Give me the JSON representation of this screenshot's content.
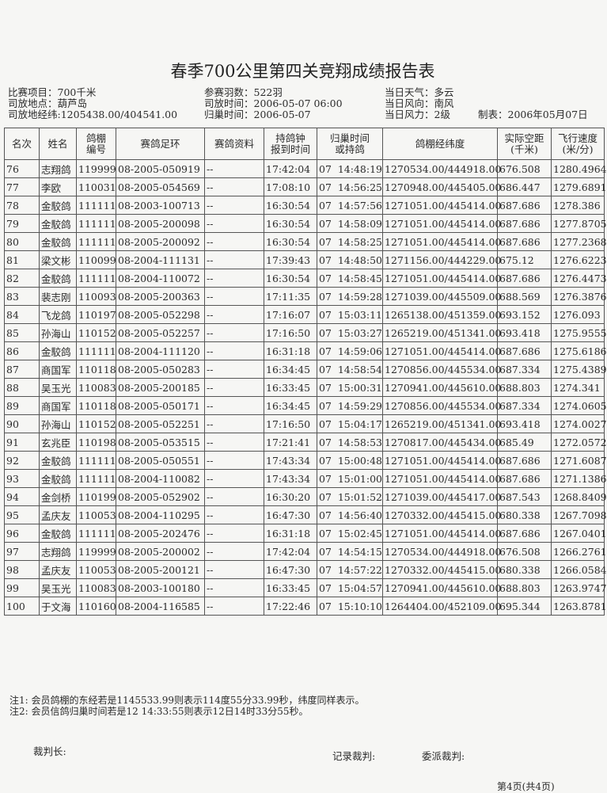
{
  "title": "春季700公里第四关竞翔成绩报告表",
  "info": {
    "left": [
      "比赛项目：700千米",
      "司放地点：葫芦岛",
      "司放地经纬:1205438.00/404541.00"
    ],
    "middle": [
      "参赛羽数：522羽",
      "司放时间：2006-05-07 06:00",
      "归巢时间：2006-05-07"
    ],
    "right": [
      "当日天气：多云",
      "当日风向：南风",
      "当日风力：2级"
    ],
    "made": "制表：2006年05月07日"
  },
  "table": {
    "headers": [
      "名次",
      "姓名",
      "鸽棚\n编号",
      "赛鸽足环",
      "赛鸽资料",
      "持鸽钟\n报到时间",
      "归巢时间\n或持鸽",
      "鸽棚经纬度",
      "实际空距\n(千米)",
      "飞行速度\n(米/分)"
    ],
    "rows": [
      [
        "76",
        "志翔鸽",
        "119999",
        "08-2005-050919",
        "--",
        "17:42:04",
        "07  14:48:19",
        "1270534.00/444918.00",
        "676.508",
        "1280.4964"
      ],
      [
        "77",
        "李欧",
        "110031",
        "08-2005-054569",
        "--",
        "17:08:10",
        "07  14:56:25",
        "1270948.00/445405.00",
        "686.447",
        "1279.6891"
      ],
      [
        "78",
        "金駮鸽",
        "111111",
        "08-2003-100713",
        "--",
        "16:30:54",
        "07  14:57:56",
        "1271051.00/445414.00",
        "687.686",
        "1278.386"
      ],
      [
        "79",
        "金駮鸽",
        "111111",
        "08-2005-200098",
        "--",
        "16:30:54",
        "07  14:58:09",
        "1271051.00/445414.00",
        "687.686",
        "1277.8705"
      ],
      [
        "80",
        "金駮鸽",
        "111111",
        "08-2005-200092",
        "--",
        "16:30:54",
        "07  14:58:25",
        "1271051.00/445414.00",
        "687.686",
        "1277.2368"
      ],
      [
        "81",
        "梁文彬",
        "110099",
        "08-2004-111131",
        "--",
        "17:39:43",
        "07  14:48:50",
        "1271156.00/444229.00",
        "675.12",
        "1276.6223"
      ],
      [
        "82",
        "金駮鸽",
        "111111",
        "08-2004-110072",
        "--",
        "16:30:54",
        "07  14:58:45",
        "1271051.00/445414.00",
        "687.686",
        "1276.4473"
      ],
      [
        "83",
        "裴志刚",
        "110093",
        "08-2005-200363",
        "--",
        "17:11:35",
        "07  14:59:28",
        "1271039.00/445509.00",
        "688.569",
        "1276.3876"
      ],
      [
        "84",
        "飞龙鸽",
        "110197",
        "08-2005-052298",
        "--",
        "17:16:07",
        "07  15:03:11",
        "1265138.00/451359.00",
        "693.152",
        "1276.093"
      ],
      [
        "85",
        "孙海山",
        "110152",
        "08-2005-052257",
        "--",
        "17:16:50",
        "07  15:03:27",
        "1265219.00/451341.00",
        "693.418",
        "1275.9555"
      ],
      [
        "86",
        "金駮鸽",
        "111111",
        "08-2004-111120",
        "--",
        "16:31:18",
        "07  14:59:06",
        "1271051.00/445414.00",
        "687.686",
        "1275.6186"
      ],
      [
        "87",
        "商国军",
        "110118",
        "08-2005-050283",
        "--",
        "16:34:45",
        "07  14:58:54",
        "1270856.00/445534.00",
        "687.334",
        "1275.4389"
      ],
      [
        "88",
        "吴玉光",
        "110083",
        "08-2005-200185",
        "--",
        "16:33:45",
        "07  15:00:31",
        "1270941.00/445610.00",
        "688.803",
        "1274.341"
      ],
      [
        "89",
        "商国军",
        "110118",
        "08-2005-050171",
        "--",
        "16:34:45",
        "07  14:59:29",
        "1270856.00/445534.00",
        "687.334",
        "1274.0605"
      ],
      [
        "90",
        "孙海山",
        "110152",
        "08-2005-052251",
        "--",
        "17:16:50",
        "07  15:04:17",
        "1265219.00/451341.00",
        "693.418",
        "1274.0027"
      ],
      [
        "91",
        "玄兆臣",
        "110198",
        "08-2005-053515",
        "--",
        "17:21:41",
        "07  14:58:53",
        "1270817.00/445434.00",
        "685.49",
        "1272.0572"
      ],
      [
        "92",
        "金駮鸽",
        "111111",
        "08-2005-050551",
        "--",
        "17:43:34",
        "07  15:00:48",
        "1271051.00/445414.00",
        "687.686",
        "1271.6087"
      ],
      [
        "93",
        "金駮鸽",
        "111111",
        "08-2004-110082",
        "--",
        "17:43:34",
        "07  15:01:00",
        "1271051.00/445414.00",
        "687.686",
        "1271.1386"
      ],
      [
        "94",
        "金剑桥",
        "110199",
        "08-2005-052902",
        "--",
        "16:30:20",
        "07  15:01:52",
        "1271039.00/445417.00",
        "687.543",
        "1268.8409"
      ],
      [
        "95",
        "孟庆友",
        "110053",
        "08-2004-110295",
        "--",
        "16:47:30",
        "07  14:56:40",
        "1270332.00/445415.00",
        "680.338",
        "1267.7098"
      ],
      [
        "96",
        "金駮鸽",
        "111111",
        "08-2005-202476",
        "--",
        "16:31:18",
        "07  15:02:45",
        "1271051.00/445414.00",
        "687.686",
        "1267.0401"
      ],
      [
        "97",
        "志翔鸽",
        "119999",
        "08-2005-200002",
        "--",
        "17:42:04",
        "07  14:54:15",
        "1270534.00/444918.00",
        "676.508",
        "1266.2761"
      ],
      [
        "98",
        "孟庆友",
        "110053",
        "08-2005-200121",
        "--",
        "16:47:30",
        "07  14:57:22",
        "1270332.00/445415.00",
        "680.338",
        "1266.0584"
      ],
      [
        "99",
        "吴玉光",
        "110083",
        "08-2003-100180",
        "--",
        "16:33:45",
        "07  15:04:57",
        "1270941.00/445610.00",
        "688.803",
        "1263.9747"
      ],
      [
        "100",
        "于文海",
        "110160",
        "08-2004-116585",
        "--",
        "17:22:46",
        "07  15:10:10",
        "1264404.00/452109.00",
        "695.344",
        "1263.8781"
      ]
    ]
  },
  "notes": [
    "注1: 会员鸽棚的东经若是1145533.99则表示114度55分33.99秒，纬度同样表示。",
    "注2: 会员信鸽归巢时间若是12  14:33:55则表示12日14时33分55秒。"
  ],
  "signatures": {
    "chief": "裁判长:",
    "recorder": "记录裁判:",
    "delegate": "委派裁判:"
  },
  "page": "第4页(共4页)"
}
